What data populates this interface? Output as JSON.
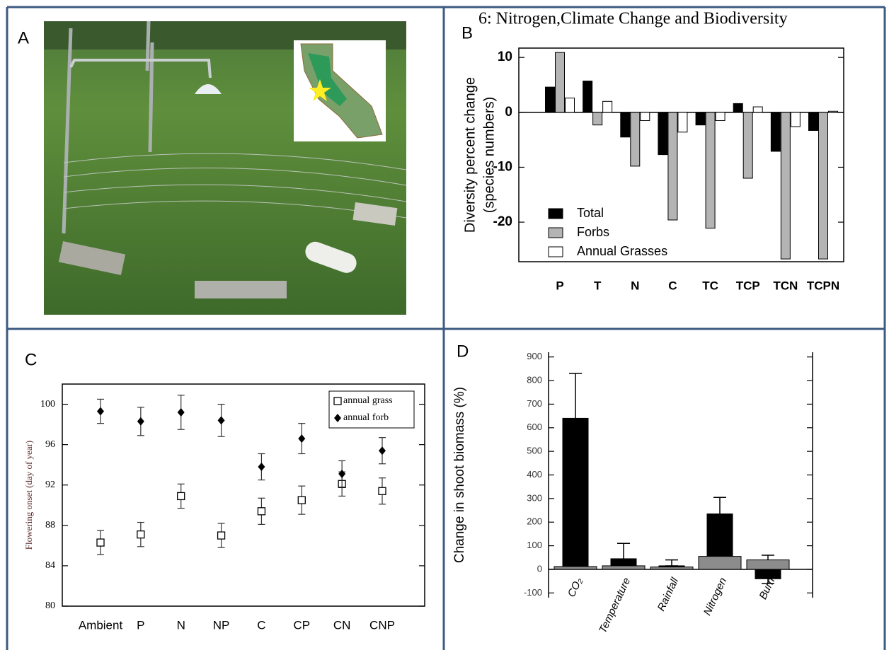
{
  "header": "6: Nitrogen,Climate Change and Biodiversity",
  "panels": [
    "A",
    "B",
    "C",
    "D"
  ],
  "chart_data": [
    {
      "type": "bar",
      "categories": [
        "P",
        "T",
        "N",
        "C",
        "TC",
        "TCP",
        "TCN",
        "TCPN"
      ],
      "series": [
        {
          "name": "Total",
          "color": "#000000",
          "values": [
            4.6,
            5.7,
            -4.5,
            -7.7,
            -2.3,
            1.6,
            -7.1,
            -3.3
          ]
        },
        {
          "name": "Forbs",
          "color": "#b4b4b4",
          "values": [
            10.9,
            -2.3,
            -9.8,
            -19.6,
            -21.1,
            -12.0,
            -26.7,
            -26.7
          ]
        },
        {
          "name": "Annual Grasses",
          "color": "#ffffff",
          "values": [
            2.6,
            2.0,
            -1.5,
            -3.6,
            -1.5,
            1.0,
            -2.6,
            0.2
          ]
        }
      ],
      "ylabel": [
        "Diversity percent change",
        "(species numbers)"
      ],
      "ylim": [
        -27.2,
        11.7
      ],
      "yticks": [
        -20,
        -10,
        0,
        10
      ],
      "legend": "lower left"
    },
    {
      "type": "scatter",
      "categories": [
        "Ambient",
        "P",
        "N",
        "NP",
        "C",
        "CP",
        "CN",
        "CNP"
      ],
      "series": [
        {
          "name": "annual grass",
          "color": "#000000",
          "marker": "square",
          "values": [
            86.3,
            87.1,
            90.9,
            87.0,
            89.4,
            90.5,
            92.1,
            91.4
          ],
          "errors": [
            1.2,
            1.2,
            1.2,
            1.2,
            1.3,
            1.4,
            1.2,
            1.3
          ]
        },
        {
          "name": "annual forb",
          "color": "#000000",
          "marker": "diamond",
          "values": [
            99.3,
            98.3,
            99.2,
            98.4,
            93.8,
            96.6,
            93.1,
            95.4
          ],
          "errors": [
            1.2,
            1.4,
            1.7,
            1.6,
            1.3,
            1.5,
            1.3,
            1.3
          ]
        }
      ],
      "ylabel": "Flowering onset (day of year)",
      "ylim": [
        80,
        102
      ],
      "yticks": [
        80,
        84,
        88,
        92,
        96,
        100
      ],
      "legend": "upper right"
    },
    {
      "type": "bar",
      "categories": [
        "CO₂",
        "Temperature",
        "Rainfall",
        "Nitrogen",
        "Burn"
      ],
      "series": [
        {
          "color": "#000000",
          "values": [
            640,
            45,
            15,
            235,
            -40
          ],
          "errors": [
            190,
            65,
            25,
            70,
            20
          ]
        },
        {
          "color": "#8c8c8c",
          "values": [
            12,
            15,
            10,
            55,
            40
          ],
          "errors": [
            8,
            5,
            5,
            12,
            20
          ]
        }
      ],
      "ylabel": "Change in shoot biomass (%)",
      "ylim": [
        -120,
        920
      ],
      "yticks": [
        -100,
        0,
        100,
        200,
        300,
        400,
        500,
        600,
        700,
        800,
        900
      ],
      "overlap": true
    }
  ]
}
